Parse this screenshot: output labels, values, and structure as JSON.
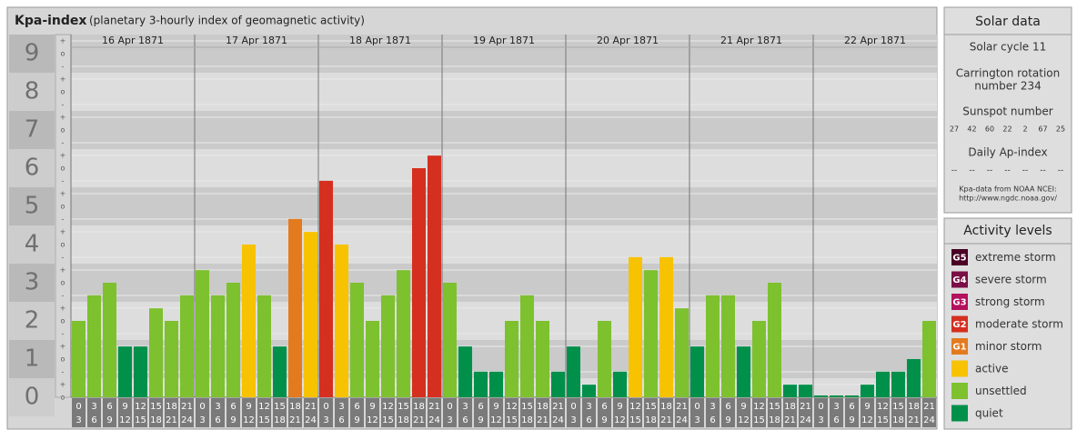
{
  "chart_data": {
    "type": "bar",
    "title": "Kpa-index",
    "subtitle": "(planetary 3-hourly index of geomagnetic activity)",
    "days": [
      "16 Apr 1871",
      "17 Apr 1871",
      "18 Apr 1871",
      "19 Apr 1871",
      "20 Apr 1871",
      "21 Apr 1871",
      "22 Apr 1871"
    ],
    "time_ticks": [
      {
        "from": "0",
        "to": "3"
      },
      {
        "from": "3",
        "to": "6"
      },
      {
        "from": "6",
        "to": "9"
      },
      {
        "from": "9",
        "to": "12"
      },
      {
        "from": "12",
        "to": "15"
      },
      {
        "from": "15",
        "to": "18"
      },
      {
        "from": "18",
        "to": "21"
      },
      {
        "from": "21",
        "to": "24"
      }
    ],
    "ylim": [
      0,
      9.5
    ],
    "yticks": [
      0,
      1,
      2,
      3,
      4,
      5,
      6,
      7,
      8,
      9
    ],
    "subtick_labels": [
      "-",
      "o",
      "+"
    ],
    "series": [
      {
        "name": "Kpa",
        "values": [
          2,
          2.67,
          3,
          1.33,
          1.33,
          2.33,
          2,
          2.67,
          3.33,
          2.67,
          3,
          4,
          2.67,
          1.33,
          4.67,
          4.33,
          5.67,
          4,
          3,
          2,
          2.67,
          3.33,
          6,
          6.33,
          3,
          1.33,
          0.67,
          0.67,
          2,
          2.67,
          2,
          0.67,
          1.33,
          0.33,
          2,
          0.67,
          3.67,
          3.33,
          3.67,
          2.33,
          1.33,
          2.67,
          2.67,
          1.33,
          2,
          3,
          0.33,
          0.33,
          0,
          0,
          0,
          0.33,
          0.67,
          0.67,
          1,
          2
        ],
        "colors": [
          "#7dc12f",
          "#7dc12f",
          "#7dc12f",
          "#00904a",
          "#00904a",
          "#7dc12f",
          "#7dc12f",
          "#7dc12f",
          "#7dc12f",
          "#7dc12f",
          "#7dc12f",
          "#f7c200",
          "#7dc12f",
          "#00904a",
          "#e47a1e",
          "#f7c200",
          "#d52f1f",
          "#f7c200",
          "#7dc12f",
          "#7dc12f",
          "#7dc12f",
          "#7dc12f",
          "#d52f1f",
          "#d52f1f",
          "#7dc12f",
          "#00904a",
          "#00904a",
          "#00904a",
          "#7dc12f",
          "#7dc12f",
          "#7dc12f",
          "#00904a",
          "#00904a",
          "#00904a",
          "#7dc12f",
          "#00904a",
          "#f7c200",
          "#7dc12f",
          "#f7c200",
          "#7dc12f",
          "#00904a",
          "#7dc12f",
          "#7dc12f",
          "#00904a",
          "#7dc12f",
          "#7dc12f",
          "#00904a",
          "#00904a",
          "#00904a",
          "#00904a",
          "#00904a",
          "#00904a",
          "#00904a",
          "#00904a",
          "#00904a",
          "#7dc12f"
        ]
      }
    ]
  },
  "solar_data": {
    "title": "Solar data",
    "cycle": "Solar cycle 11",
    "carrington_1": "Carrington rotation",
    "carrington_2": "number 234",
    "sunspot_title": "Sunspot number",
    "sunspots": [
      "27",
      "42",
      "60",
      "22",
      "2",
      "67",
      "25"
    ],
    "ap_title": "Daily Ap-index",
    "ap": [
      "--",
      "--",
      "--",
      "--",
      "--",
      "--",
      "--"
    ],
    "source_1": "Kpa-data from NOAA NCEI:",
    "source_2": "http://www.ngdc.noaa.gov/"
  },
  "activity_levels": {
    "title": "Activity levels",
    "levels": [
      {
        "code": "G5",
        "label": "extreme storm",
        "color": "#4a0024"
      },
      {
        "code": "G4",
        "label": "severe storm",
        "color": "#7a0f45"
      },
      {
        "code": "G3",
        "label": "strong storm",
        "color": "#b3125f"
      },
      {
        "code": "G2",
        "label": "moderate storm",
        "color": "#d52f1f"
      },
      {
        "code": "G1",
        "label": "minor storm",
        "color": "#e47a1e"
      },
      {
        "label": "active",
        "color": "#f7c200"
      },
      {
        "label": "unsettled",
        "color": "#7dc12f"
      },
      {
        "label": "quiet",
        "color": "#00904a"
      }
    ]
  }
}
